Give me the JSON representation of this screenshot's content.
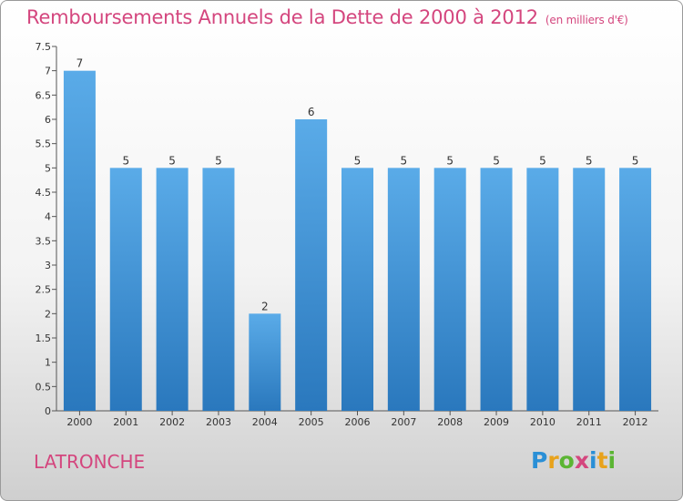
{
  "chart_data": {
    "type": "bar",
    "title": "Remboursements Annuels de la Dette de 2000 à 2012",
    "subtitle": "(en milliers d'€)",
    "categories": [
      "2000",
      "2001",
      "2002",
      "2003",
      "2004",
      "2005",
      "2006",
      "2007",
      "2008",
      "2009",
      "2010",
      "2011",
      "2012"
    ],
    "values": [
      7,
      5,
      5,
      5,
      2,
      6,
      5,
      5,
      5,
      5,
      5,
      5,
      5
    ],
    "data_labels": [
      "7",
      "5",
      "5",
      "5",
      "2",
      "6",
      "5",
      "5",
      "5",
      "5",
      "5",
      "5",
      "5"
    ],
    "yticks": [
      "0",
      "0.5",
      "1",
      "1.5",
      "2",
      "2.5",
      "3",
      "3.5",
      "4",
      "4.5",
      "5",
      "5.5",
      "6",
      "6.5",
      "7",
      "7.5"
    ],
    "ylim": [
      0,
      7.5
    ],
    "grid": false,
    "bar_color": "#3f95d8"
  },
  "commune": "LATRONCHE",
  "logo": {
    "letters": [
      "P",
      "r",
      "o",
      "x",
      "i",
      "t",
      "i"
    ],
    "colors": [
      "#2a8fd6",
      "#e8a21b",
      "#5bb533",
      "#d4467e",
      "#2a8fd6",
      "#e8a21b",
      "#5bb533"
    ]
  }
}
